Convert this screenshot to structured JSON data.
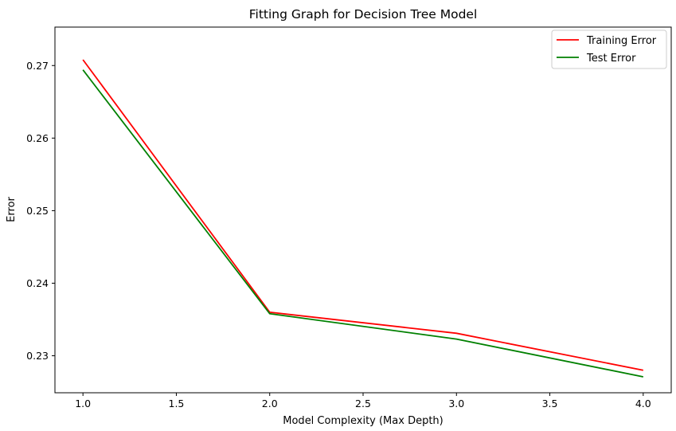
{
  "chart_data": {
    "type": "line",
    "title": "Fitting Graph for Decision Tree Model",
    "xlabel": "Model Complexity (Max Depth)",
    "ylabel": "Error",
    "x": [
      1,
      2,
      3,
      4
    ],
    "xlim": [
      0.85,
      4.15
    ],
    "ylim": [
      0.2249,
      0.2753
    ],
    "xticks": [
      1.0,
      1.5,
      2.0,
      2.5,
      3.0,
      3.5,
      4.0
    ],
    "xtick_labels": [
      "1.0",
      "1.5",
      "2.0",
      "2.5",
      "3.0",
      "3.5",
      "4.0"
    ],
    "yticks": [
      0.23,
      0.24,
      0.25,
      0.26,
      0.27
    ],
    "ytick_labels": [
      "0.23",
      "0.24",
      "0.25",
      "0.26",
      "0.27"
    ],
    "grid": false,
    "legend_position": "top-right",
    "series": [
      {
        "name": "Training Error",
        "color": "#ff0000",
        "values": [
          0.2708,
          0.236,
          0.2331,
          0.228
        ]
      },
      {
        "name": "Test Error",
        "color": "#008000",
        "values": [
          0.2694,
          0.2358,
          0.2323,
          0.2271
        ]
      }
    ]
  }
}
